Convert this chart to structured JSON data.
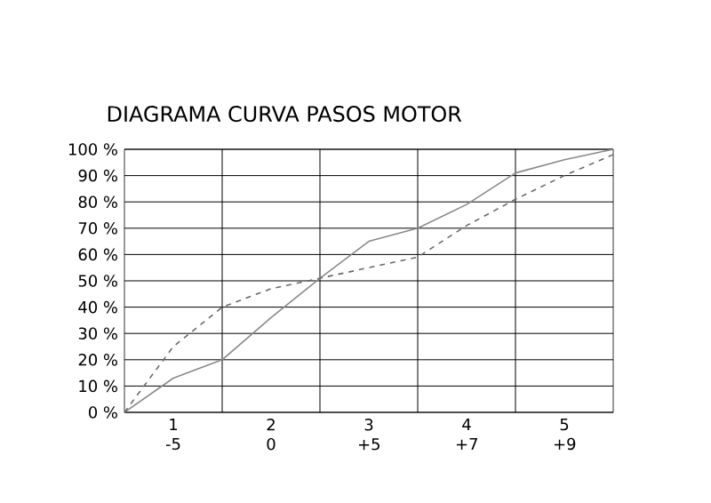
{
  "chart_data": {
    "type": "line",
    "title": "DIAGRAMA CURVA PASOS MOTOR",
    "categories": [
      null,
      "1 -5",
      null,
      "2 0",
      null,
      "3 +5",
      null,
      "4 +7",
      null,
      "5 +9",
      null
    ],
    "ylim": [
      0,
      100
    ],
    "yticks": [
      {
        "value": 0,
        "label": "0 %"
      },
      {
        "value": 10,
        "label": "10 %"
      },
      {
        "value": 20,
        "label": "20 %"
      },
      {
        "value": 30,
        "label": "30 %"
      },
      {
        "value": 40,
        "label": "40 %"
      },
      {
        "value": 50,
        "label": "50 %"
      },
      {
        "value": 60,
        "label": "60 %"
      },
      {
        "value": 70,
        "label": "70 %"
      },
      {
        "value": 80,
        "label": "80 %"
      },
      {
        "value": 90,
        "label": "90 %"
      },
      {
        "value": 100,
        "label": "100 %"
      }
    ],
    "grid": true,
    "series": [
      {
        "color": "#8a8a8a",
        "line_style": "solid",
        "values": [
          0,
          13,
          20,
          36,
          51,
          65,
          70,
          79,
          91,
          96,
          100
        ]
      },
      {
        "color": "#6a6a6a",
        "line_style": "dashed",
        "values": [
          0,
          25,
          40,
          47,
          51,
          55,
          59,
          71,
          81,
          90,
          98
        ]
      }
    ]
  }
}
